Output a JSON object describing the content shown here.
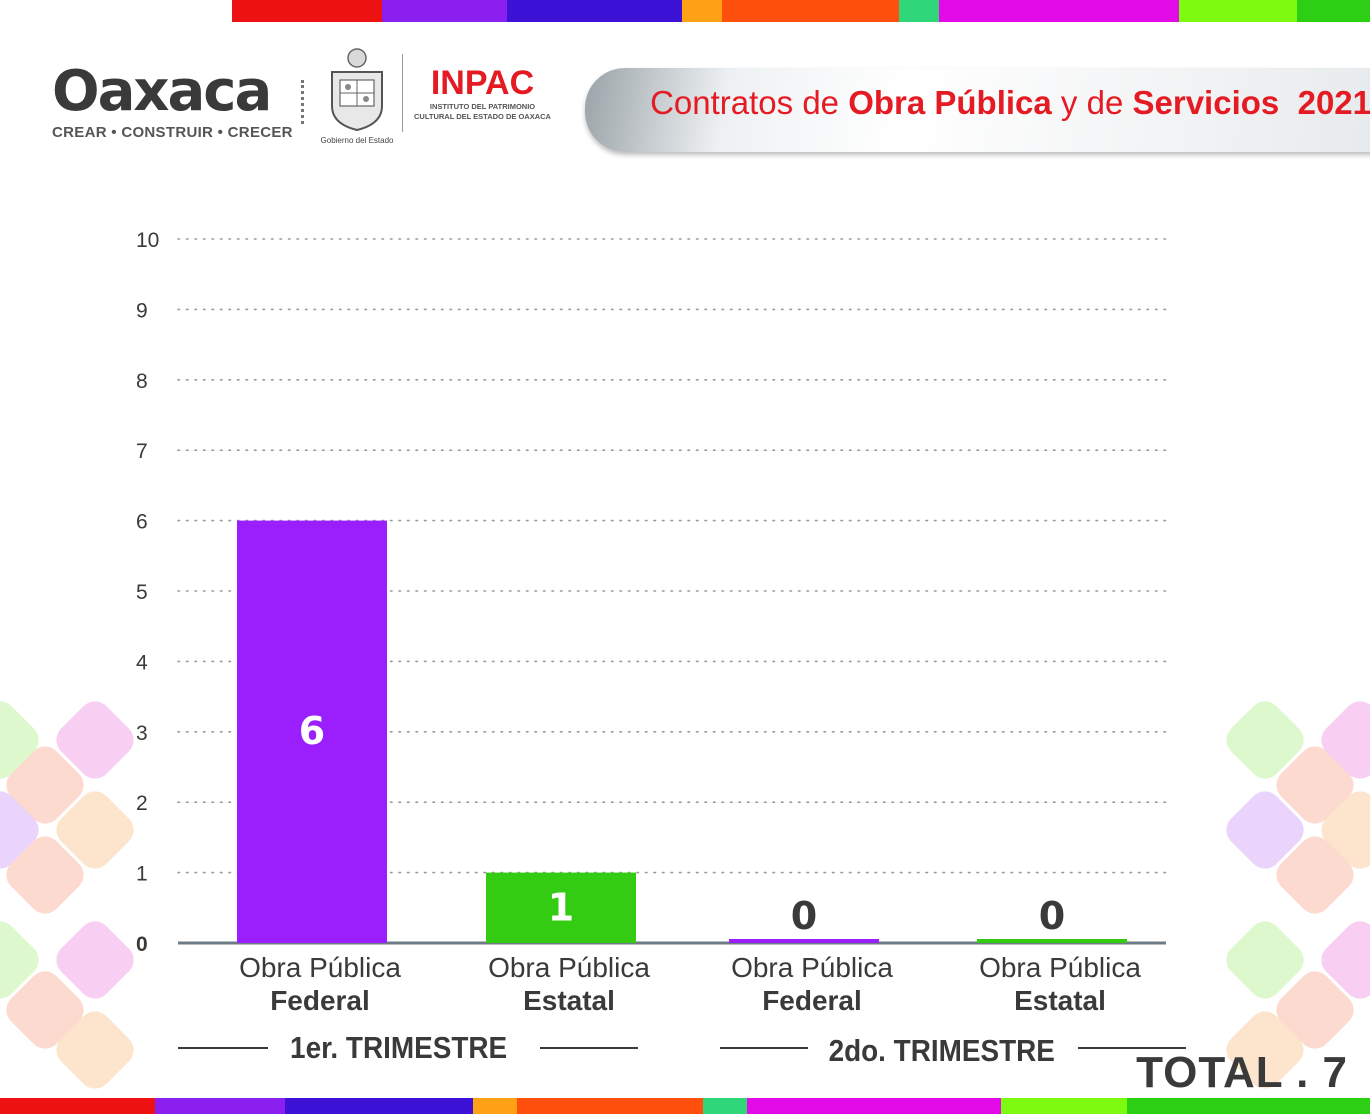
{
  "header": {
    "logo_word": "Oaxaca",
    "logo_tagline": "CREAR • CONSTRUIR • CRECER",
    "seal_caption": "Gobierno del Estado",
    "inpac_title": "INPAC",
    "inpac_subtitle_1": "INSTITUTO DEL PATRIMONIO",
    "inpac_subtitle_2": "CULTURAL DEL ESTADO DE OAXACA",
    "banner": {
      "part1": "Contratos de ",
      "part2": "Obra Pública",
      "part3": " y de ",
      "part4": "Servicios",
      "part5": "  2021"
    }
  },
  "colors": {
    "purple": "#9a1ffc",
    "green": "#33cc12",
    "text": "#3a3a3a",
    "accent": "#e41b23",
    "stripe": [
      "#ee1111",
      "#8a1ff0",
      "#3b12d6",
      "#ffa114",
      "#ff4f0d",
      "#2fd67a",
      "#e20ae6",
      "#7cfb11",
      "#2ccf13"
    ]
  },
  "chart_data": {
    "type": "bar",
    "title": "",
    "xlabel": "",
    "ylabel": "",
    "ylim": [
      0,
      10
    ],
    "yticks": [
      0,
      1,
      2,
      3,
      4,
      5,
      6,
      7,
      8,
      9,
      10
    ],
    "grid": true,
    "categories": [
      {
        "line1": "Obra Pública",
        "line2": "Federal",
        "group": "1er. TRIMESTRE",
        "value": 6,
        "color": "#9a1ffc"
      },
      {
        "line1": "Obra Pública",
        "line2": "Estatal",
        "group": "1er. TRIMESTRE",
        "value": 1,
        "color": "#33cc12"
      },
      {
        "line1": "Obra Pública",
        "line2": "Federal",
        "group": "2do. TRIMESTRE",
        "value": 0,
        "color": "#9a1ffc"
      },
      {
        "line1": "Obra Pública",
        "line2": "Estatal",
        "group": "2do. TRIMESTRE",
        "value": 0,
        "color": "#33cc12"
      }
    ],
    "groups": [
      "1er. TRIMESTRE",
      "2do. TRIMESTRE"
    ]
  },
  "total_label": "TOTAL . 7"
}
